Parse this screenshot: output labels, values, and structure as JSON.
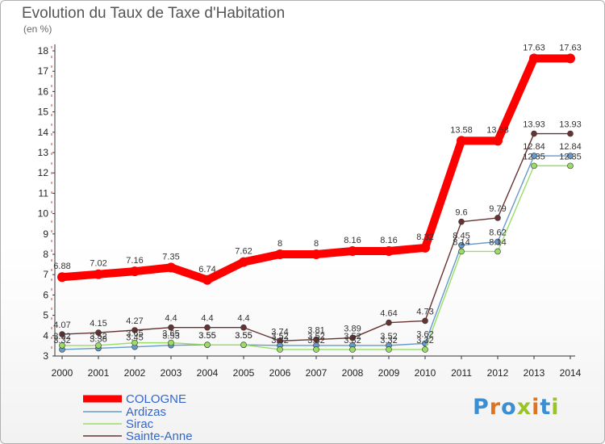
{
  "title": "Evolution du Taux de Taxe d'Habitation",
  "unit_label": "(en %)",
  "logo": {
    "letters": [
      "P",
      "r",
      "o",
      "x",
      "i",
      "t",
      "i"
    ],
    "colors": [
      "#3a8fd4",
      "#e3731b",
      "#3a8fd4",
      "#9ac229",
      "#e3731b",
      "#3a8fd4",
      "#9ac229"
    ]
  },
  "chart_data": {
    "type": "line",
    "title": "Evolution du Taux de Taxe d'Habitation",
    "ylabel": "(en %)",
    "xlabel": "",
    "ylim": [
      3,
      18
    ],
    "yticks": [
      3,
      4,
      5,
      6,
      7,
      8,
      9,
      10,
      11,
      12,
      13,
      14,
      15,
      16,
      17,
      18
    ],
    "x": [
      "2000",
      "2001",
      "2002",
      "2003",
      "2004",
      "2005",
      "2006",
      "2007",
      "2008",
      "2009",
      "2010",
      "2011",
      "2012",
      "2013",
      "2014"
    ],
    "grid": false,
    "legend_position": "bottom-left",
    "series": [
      {
        "name": "COLOGNE",
        "color": "#ff0000",
        "values": [
          6.88,
          7.02,
          7.16,
          7.35,
          6.74,
          7.62,
          8,
          8,
          8.16,
          8.16,
          8.32,
          13.58,
          13.58,
          17.63,
          17.63
        ],
        "labels": [
          "6.88",
          "7.02",
          "7.16",
          "7.35",
          "6.74",
          "7.62",
          "8",
          "8",
          "8.16",
          "8.16",
          "8.32",
          "13.58",
          "13.58",
          "17.63",
          "17.63"
        ]
      },
      {
        "name": "Ardizas",
        "color": "#6699cc",
        "values": [
          3.32,
          3.38,
          3.45,
          3.53,
          3.55,
          3.55,
          3.52,
          3.52,
          3.52,
          3.52,
          3.62,
          8.45,
          8.62,
          12.84,
          12.84
        ],
        "labels": [
          "3.32",
          "3.38",
          "3.45",
          "3.53",
          "3.55",
          "3.55",
          "3.52",
          "3.52",
          "3.52",
          "3.52",
          "3.62",
          "8.45",
          "8.62",
          "12.84",
          "12.84"
        ]
      },
      {
        "name": "Sirac",
        "color": "#99dd66",
        "values": [
          3.52,
          3.52,
          3.65,
          3.65,
          3.55,
          3.55,
          3.32,
          3.32,
          3.32,
          3.32,
          3.32,
          8.14,
          8.14,
          12.35,
          12.35
        ],
        "labels": [
          "3.52",
          "3.52",
          "3.65",
          "3.65",
          "3.55",
          "3.55",
          "3.32",
          "3.32",
          "3.32",
          "3.32",
          "3.32",
          "8.14",
          "8.14",
          "12.35",
          "12.35"
        ]
      },
      {
        "name": "Sainte-Anne",
        "color": "#663333",
        "values": [
          4.07,
          4.15,
          4.27,
          4.4,
          4.4,
          4.4,
          3.74,
          3.81,
          3.89,
          4.64,
          4.73,
          9.6,
          9.79,
          13.93,
          13.93
        ],
        "labels": [
          "4.07",
          "4.15",
          "4.27",
          "4.4",
          "4.4",
          "4.4",
          "3.74",
          "3.81",
          "3.89",
          "4.64",
          "4.73",
          "9.6",
          "9.79",
          "13.93",
          "13.93"
        ]
      }
    ]
  }
}
